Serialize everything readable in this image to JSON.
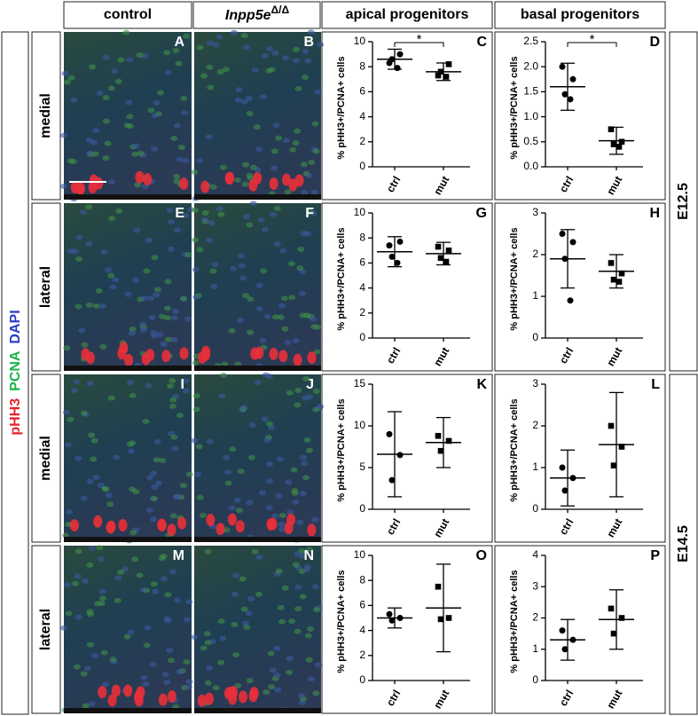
{
  "headers": {
    "control": "control",
    "mutant": {
      "gene": "Inpp5e",
      "sup": "Δ/Δ"
    },
    "apical": "apical progenitors",
    "basal": "basal progenitors"
  },
  "stain": {
    "pHH3": "pHH3",
    "PCNA": "PCNA",
    "DAPI": "DAPI"
  },
  "rows": [
    "medial",
    "lateral",
    "medial",
    "lateral"
  ],
  "stages": [
    "E12.5",
    "E14.5"
  ],
  "images": [
    "A",
    "B",
    "E",
    "F",
    "I",
    "J",
    "M",
    "N"
  ],
  "chart_data": [
    {
      "type": "scatter",
      "label": "C",
      "ylabel": "% pHH3+/PCNA+ cells",
      "categories": [
        "ctrl",
        "mut"
      ],
      "points": [
        [
          8.3,
          9.0,
          8.6,
          7.9
        ],
        [
          7.3,
          8.2,
          7.6,
          7.2
        ]
      ],
      "mean": [
        8.6,
        7.6
      ],
      "sd": [
        0.8,
        0.7
      ],
      "ylim": [
        0,
        10
      ],
      "yticks": [
        0,
        2,
        4,
        6,
        8,
        10
      ],
      "significance": "*"
    },
    {
      "type": "scatter",
      "label": "D",
      "ylabel": "% pHH3+/PCNA+ cells",
      "categories": [
        "ctrl",
        "mut"
      ],
      "points": [
        [
          2.0,
          1.75,
          1.45,
          1.35
        ],
        [
          0.75,
          0.5,
          0.45,
          0.4
        ]
      ],
      "mean": [
        1.6,
        0.52
      ],
      "sd": [
        0.47,
        0.27
      ],
      "ylim": [
        0,
        2.5
      ],
      "yticks": [
        {
          "value": 0,
          "label": "0.0"
        },
        0.5,
        {
          "value": 1,
          "label": "1.0"
        },
        1.5,
        {
          "value": 2,
          "label": "2.0"
        },
        2.5
      ],
      "significance": "*"
    },
    {
      "type": "scatter",
      "label": "G",
      "ylabel": "% pHH3+/PCNA+ cells",
      "categories": [
        "ctrl",
        "mut"
      ],
      "points": [
        [
          7.4,
          7.7,
          6.5,
          6.0
        ],
        [
          7.3,
          7.0,
          6.4,
          6.1
        ]
      ],
      "mean": [
        6.9,
        6.75
      ],
      "sd": [
        1.2,
        0.9
      ],
      "ylim": [
        0,
        10
      ],
      "yticks": [
        0,
        2,
        4,
        6,
        8,
        10
      ]
    },
    {
      "type": "scatter",
      "label": "H",
      "ylabel": "% pHH3+/PCNA+ cells",
      "categories": [
        "ctrl",
        "mut"
      ],
      "points": [
        [
          2.5,
          2.3,
          1.9,
          0.9
        ],
        [
          1.8,
          1.55,
          1.4,
          1.35
        ]
      ],
      "mean": [
        1.9,
        1.6
      ],
      "sd": [
        0.7,
        0.4
      ],
      "ylim": [
        0,
        3
      ],
      "yticks": [
        0,
        1,
        2,
        3
      ]
    },
    {
      "type": "scatter",
      "label": "K",
      "ylabel": "% pHH3+/PCNA+ cells",
      "categories": [
        "ctrl",
        "mut"
      ],
      "points": [
        [
          9,
          6.5,
          3.5
        ],
        [
          8.8,
          8.2,
          7
        ]
      ],
      "mean": [
        6.6,
        8.0
      ],
      "sd": [
        5.1,
        3.0
      ],
      "ylim": [
        0,
        15
      ],
      "yticks": [
        0,
        5,
        10,
        15
      ]
    },
    {
      "type": "scatter",
      "label": "L",
      "ylabel": "% pHH3+/PCNA+ cells",
      "categories": [
        "ctrl",
        "mut"
      ],
      "points": [
        [
          1.0,
          0.75,
          0.45
        ],
        [
          2.0,
          1.5,
          1.05
        ]
      ],
      "mean": [
        0.75,
        1.55
      ],
      "sd": [
        0.67,
        1.25
      ],
      "ylim": [
        0,
        3
      ],
      "yticks": [
        0,
        1,
        2,
        3
      ]
    },
    {
      "type": "scatter",
      "label": "O",
      "ylabel": "% pHH3+/PCNA+ cells",
      "categories": [
        "ctrl",
        "mut"
      ],
      "points": [
        [
          5.3,
          5.0,
          4.8
        ],
        [
          7.5,
          5.0,
          4.9
        ]
      ],
      "mean": [
        5.0,
        5.8
      ],
      "sd": [
        0.8,
        3.5
      ],
      "ylim": [
        0,
        10
      ],
      "yticks": [
        0,
        2,
        4,
        6,
        8,
        10
      ]
    },
    {
      "type": "scatter",
      "label": "P",
      "ylabel": "% pHH3+/PCNA+ cells",
      "categories": [
        "ctrl",
        "mut"
      ],
      "points": [
        [
          1.6,
          1.3,
          1.0
        ],
        [
          2.3,
          2.0,
          1.5
        ]
      ],
      "mean": [
        1.3,
        1.95
      ],
      "sd": [
        0.65,
        0.95
      ],
      "ylim": [
        0,
        4
      ],
      "yticks": [
        0,
        1,
        2,
        3,
        4
      ]
    }
  ]
}
